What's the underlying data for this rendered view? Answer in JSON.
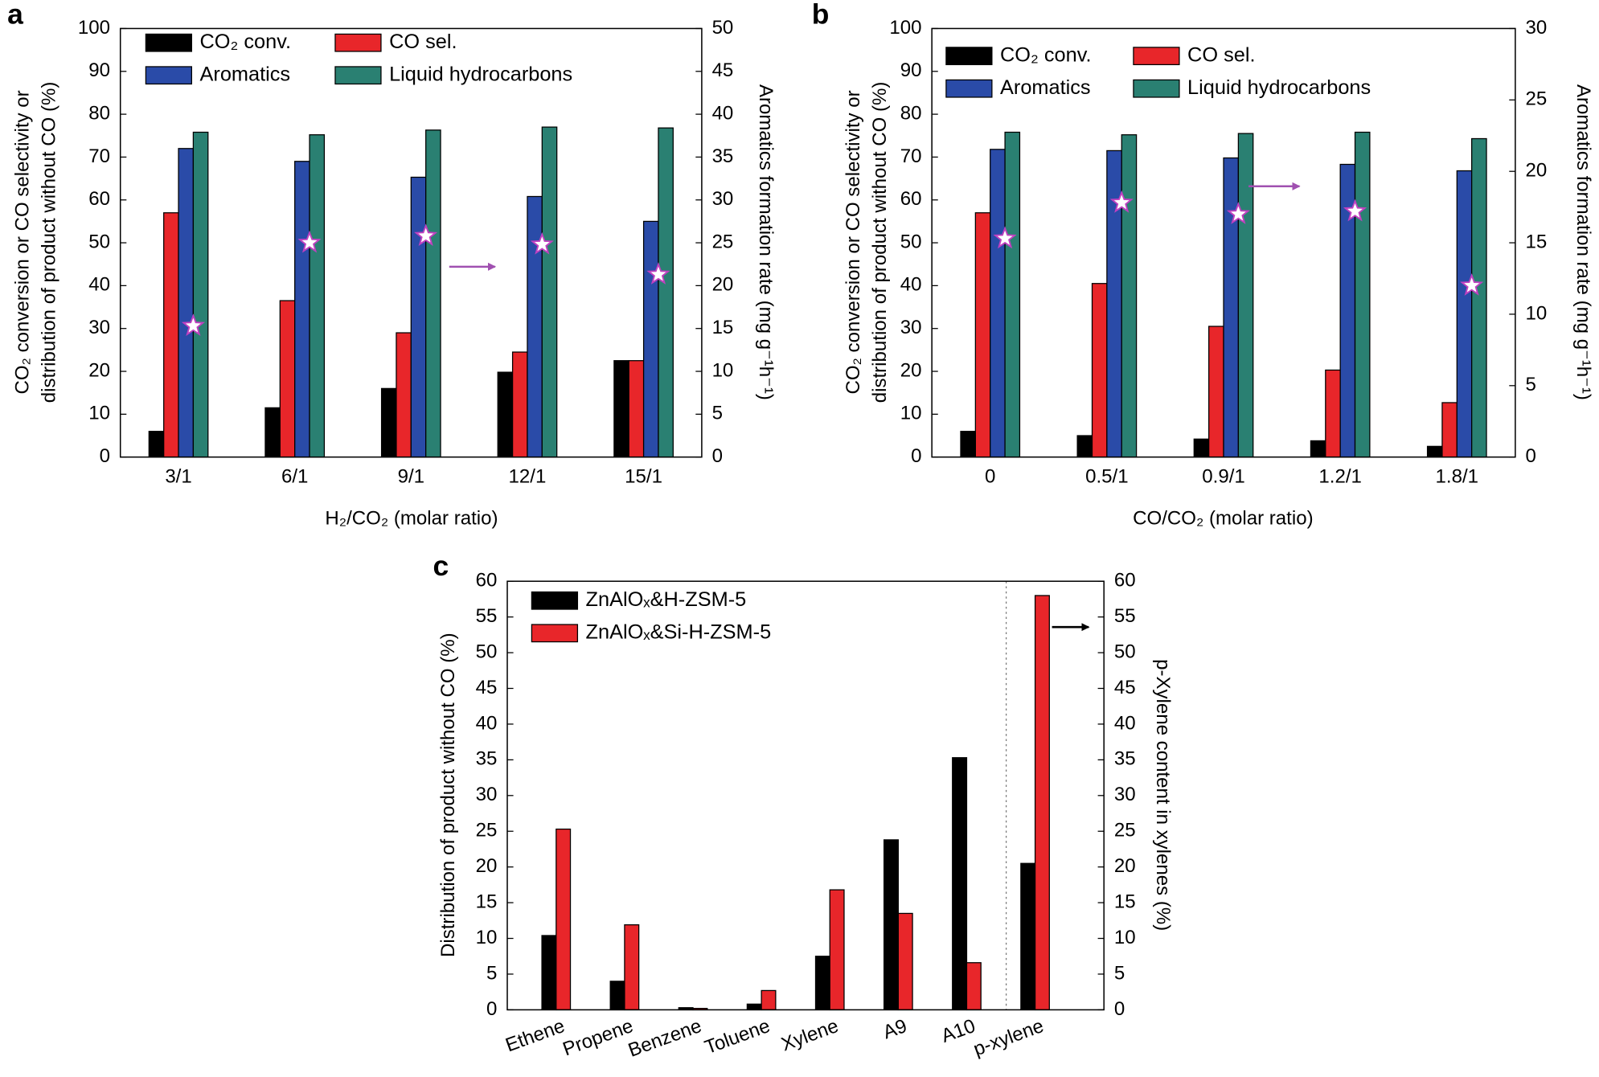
{
  "chart_data": [
    {
      "type": "bar",
      "panel_label": "a",
      "x_label": "H₂/CO₂ (molar ratio)",
      "y_label": [
        "CO₂ conversion or CO selectivity or",
        "distribution of product without CO (%)"
      ],
      "y2_label": "Aromatics formation rate (mg g⁻¹h⁻¹)",
      "categories": [
        "3/1",
        "6/1",
        "9/1",
        "12/1",
        "15/1"
      ],
      "series": [
        {
          "name": "CO₂ conv.",
          "color": "#000000",
          "values": [
            6,
            11.5,
            16,
            19.8,
            22.5
          ]
        },
        {
          "name": "CO sel.",
          "color": "#e8262a",
          "values": [
            57,
            36.5,
            29,
            24.5,
            22.5
          ]
        },
        {
          "name": "Aromatics",
          "color": "#2a4ba8",
          "values": [
            72,
            69,
            65.3,
            60.8,
            55
          ]
        },
        {
          "name": "Liquid hydrocarbons",
          "color": "#2a8072",
          "values": [
            75.8,
            75.2,
            76.3,
            77,
            76.8
          ]
        },
        {
          "axis": "y2",
          "marker": "star",
          "color": "#c040c0",
          "values": [
            15.3,
            25,
            25.8,
            24.8,
            21.3
          ]
        }
      ],
      "ylim": [
        0,
        100
      ],
      "yticks": [
        0,
        10,
        20,
        30,
        40,
        50,
        60,
        70,
        80,
        90,
        100
      ],
      "y2lim": [
        0,
        50
      ],
      "y2ticks": [
        0,
        5,
        10,
        15,
        20,
        25,
        30,
        35,
        40,
        45,
        50
      ]
    },
    {
      "type": "bar",
      "panel_label": "b",
      "x_label": "CO/CO₂ (molar ratio)",
      "y_label": [
        "CO₂ conversion or CO selectivity or",
        "distribution of product without CO (%)"
      ],
      "y2_label": "Aromatics formation rate (mg g⁻¹h⁻¹)",
      "categories": [
        "0",
        "0.5/1",
        "0.9/1",
        "1.2/1",
        "1.8/1"
      ],
      "series": [
        {
          "name": "CO₂ conv.",
          "color": "#000000",
          "values": [
            6,
            5,
            4.2,
            3.8,
            2.5
          ]
        },
        {
          "name": "CO sel.",
          "color": "#e8262a",
          "values": [
            57,
            40.5,
            30.5,
            20.3,
            12.7
          ]
        },
        {
          "name": "Aromatics",
          "color": "#2a4ba8",
          "values": [
            71.8,
            71.5,
            69.8,
            68.3,
            66.8
          ]
        },
        {
          "name": "Liquid hydrocarbons",
          "color": "#2a8072",
          "values": [
            75.8,
            75.2,
            75.5,
            75.8,
            74.3
          ]
        },
        {
          "axis": "y2",
          "marker": "star",
          "color": "#c040c0",
          "values": [
            15.3,
            17.8,
            17,
            17.2,
            12
          ]
        }
      ],
      "ylim": [
        0,
        100
      ],
      "yticks": [
        0,
        10,
        20,
        30,
        40,
        50,
        60,
        70,
        80,
        90,
        100
      ],
      "y2lim": [
        0,
        30
      ],
      "y2ticks": [
        0,
        5,
        10,
        15,
        20,
        25,
        30
      ]
    },
    {
      "type": "bar",
      "panel_label": "c",
      "y_label": [
        "Distribution of product without CO (%)"
      ],
      "y2_label": "p-Xylene content in xylenes (%)",
      "categories": [
        "Ethene",
        "Propene",
        "Benzene",
        "Toluene",
        "Xylene",
        "A9",
        "A10",
        "p-xylene"
      ],
      "series": [
        {
          "name": "ZnAlOₓ&H-ZSM-5",
          "color": "#000000",
          "values": [
            10.4,
            4,
            0.3,
            0.8,
            7.5,
            23.8,
            35.3,
            20.5
          ]
        },
        {
          "name": "ZnAlOₓ&Si-H-ZSM-5",
          "color": "#e8262a",
          "values": [
            25.3,
            11.9,
            0.2,
            2.7,
            16.8,
            13.5,
            6.6,
            58
          ]
        }
      ],
      "ylim": [
        0,
        60
      ],
      "yticks": [
        0,
        5,
        10,
        15,
        20,
        25,
        30,
        35,
        40,
        45,
        50,
        55,
        60
      ],
      "y2lim": [
        0,
        60
      ],
      "y2ticks": [
        0,
        5,
        10,
        15,
        20,
        25,
        30,
        35,
        40,
        45,
        50,
        55,
        60
      ]
    }
  ]
}
